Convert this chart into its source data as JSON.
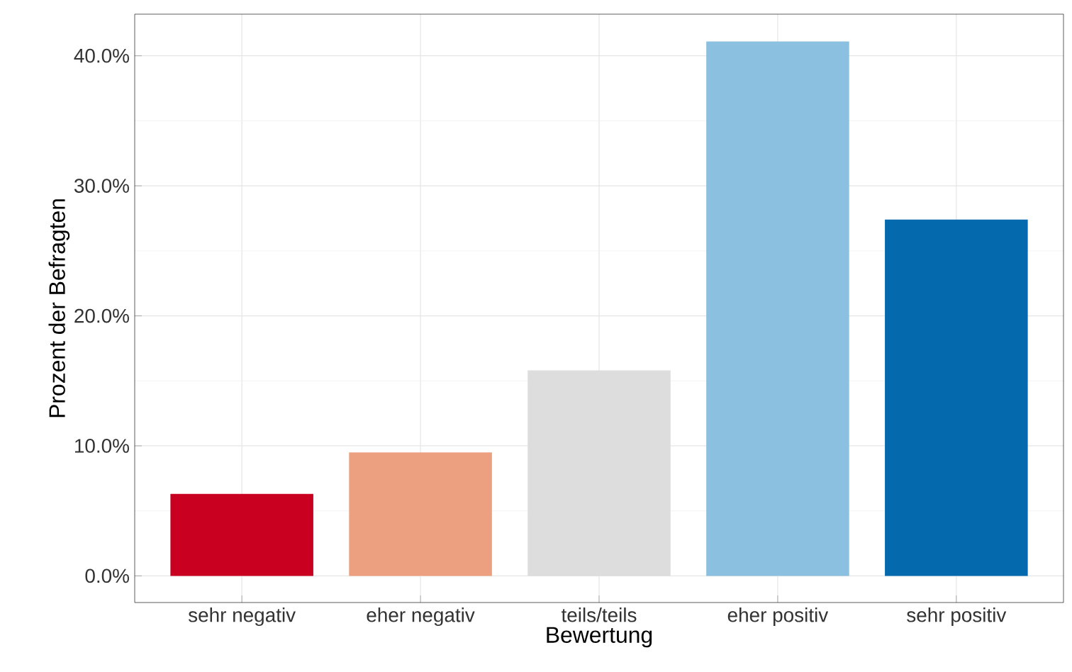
{
  "chart_data": {
    "type": "bar",
    "xlabel": "Bewertung",
    "ylabel": "Prozent der Befragten",
    "categories": [
      "sehr negativ",
      "eher negativ",
      "teils/teils",
      "eher positiv",
      "sehr positiv"
    ],
    "values": [
      6.3,
      9.5,
      15.8,
      41.1,
      27.4
    ],
    "colors": [
      "#ca0020",
      "#eda07f",
      "#dddddd",
      "#8bc0e0",
      "#0569ad"
    ],
    "ylim": [
      -2.05,
      43.2
    ],
    "yticks": [
      {
        "value": 0,
        "label": "0.0%"
      },
      {
        "value": 10,
        "label": "10.0%"
      },
      {
        "value": 20,
        "label": "20.0%"
      },
      {
        "value": 30,
        "label": "30.0%"
      },
      {
        "value": 40,
        "label": "40.0%"
      }
    ],
    "grid": true
  }
}
